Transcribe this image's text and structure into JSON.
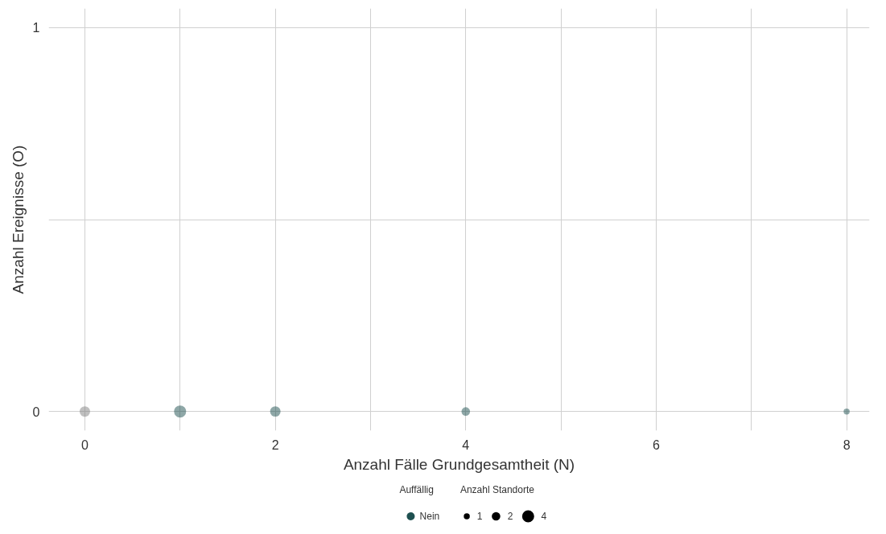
{
  "chart_data": {
    "type": "bubble",
    "xlabel": "Anzahl Fälle Grundgesamtheit (N)",
    "ylabel": "Anzahl Ereignisse (O)",
    "series": [
      {
        "color": "#808080",
        "x": [
          0
        ],
        "values": [
          0
        ],
        "sizes": [
          3
        ]
      },
      {
        "name": "Nein",
        "color": "#1e5050",
        "x": [
          1,
          2,
          4,
          8
        ],
        "values": [
          0,
          0,
          0,
          0
        ],
        "sizes": [
          4,
          3,
          2,
          1
        ]
      }
    ],
    "legend_title": "Auffällig",
    "annotations": [
      "Anzahl Standorte"
    ],
    "size_legend": [
      1,
      2,
      4
    ],
    "xlim": [
      -0.38,
      8.24
    ],
    "ylim": [
      -0.05,
      1.05
    ],
    "xticks": [
      0,
      {
        "value": 1,
        "label": null
      },
      2,
      {
        "value": 3,
        "label": null
      },
      4,
      {
        "value": 5,
        "label": null
      },
      6,
      {
        "value": 7,
        "label": null
      },
      8
    ],
    "yticks": [
      0,
      {
        "value": 0.5,
        "label": null
      },
      1
    ],
    "grid": true,
    "legend": "bottom",
    "marker": "circle"
  }
}
